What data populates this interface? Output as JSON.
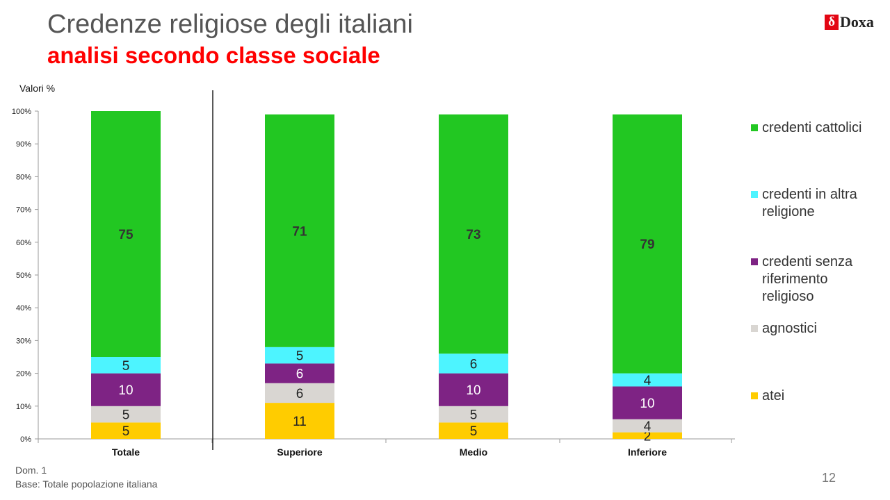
{
  "header": {
    "title": "Credenze religiose degli italiani",
    "subtitle": "analisi secondo classe sociale"
  },
  "logo": {
    "mark": "δ",
    "text": "Doxa"
  },
  "unit_label": "Valori %",
  "footnotes": {
    "line1": "Dom. 1",
    "line2": "Base: Totale popolazione italiana"
  },
  "page_number": "12",
  "colors": {
    "credenti_cattolici": "#22c722",
    "credenti_altra": "#4df4ff",
    "credenti_senza": "#7e2384",
    "agnostici": "#d9d6d2",
    "atei": "#ffcc00"
  },
  "legend": [
    {
      "label": "credenti cattolici",
      "color": "#22c722"
    },
    {
      "label": "credenti in altra religione",
      "color": "#4df4ff"
    },
    {
      "label": "credenti senza riferimento religioso",
      "color": "#7e2384"
    },
    {
      "label": "agnostici",
      "color": "#d9d6d2"
    },
    {
      "label": "atei",
      "color": "#ffcc00"
    }
  ],
  "chart_data": {
    "type": "bar",
    "stacked": true,
    "percent_stacked": true,
    "categories": [
      "Totale",
      "Superiore",
      "Medio",
      "Inferiore"
    ],
    "series": [
      {
        "name": "atei",
        "values": [
          5,
          11,
          5,
          2
        ],
        "color": "#ffcc00"
      },
      {
        "name": "agnostici",
        "values": [
          5,
          6,
          5,
          4
        ],
        "color": "#d9d6d2"
      },
      {
        "name": "credenti senza riferimento religioso",
        "values": [
          10,
          6,
          10,
          10
        ],
        "color": "#7e2384"
      },
      {
        "name": "credenti in altra religione",
        "values": [
          5,
          5,
          6,
          4
        ],
        "color": "#4df4ff"
      },
      {
        "name": "credenti cattolici",
        "values": [
          75,
          71,
          73,
          79
        ],
        "color": "#22c722"
      }
    ],
    "ylim": [
      0,
      100
    ],
    "yticks": [
      "0%",
      "10%",
      "20%",
      "30%",
      "40%",
      "50%",
      "60%",
      "70%",
      "80%",
      "90%",
      "100%"
    ],
    "ylabel": "Valori %",
    "xlabel": "",
    "grid": false,
    "legend_position": "right"
  }
}
